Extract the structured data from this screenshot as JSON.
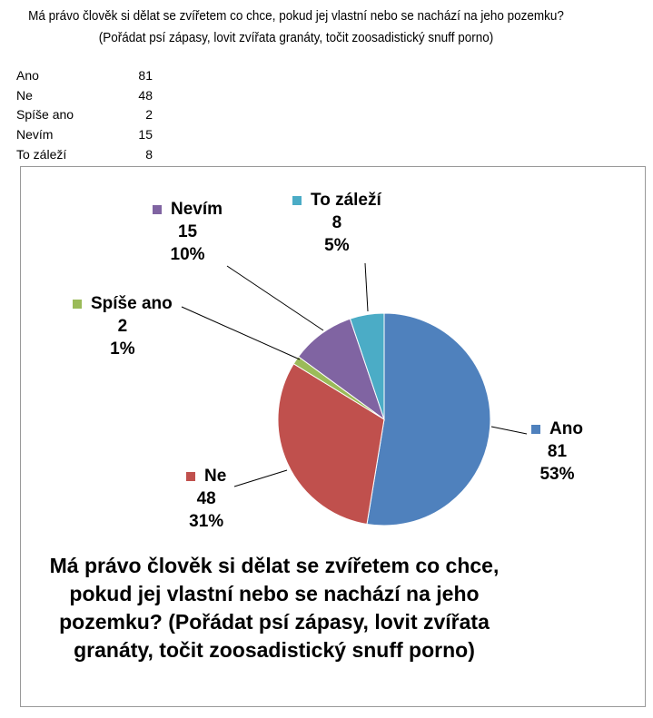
{
  "question": "Má právo člověk si dělat se zvířetem co chce, pokud jej vlastní nebo se nachází na jeho pozemku? (Pořádat psí zápasy, lovit zvířata granáty, točit zoosadistický snuff porno)",
  "table": [
    {
      "name": "Ano",
      "value": "81"
    },
    {
      "name": "Ne",
      "value": "48"
    },
    {
      "name": "Spíše ano",
      "value": "2"
    },
    {
      "name": "Nevím",
      "value": "15"
    },
    {
      "name": "To záleží",
      "value": "8"
    }
  ],
  "chart_data": {
    "type": "pie",
    "title": "Má právo člověk si dělat se zvířetem co chce, pokud jej vlastní nebo se nachází na jeho pozemku? (Pořádat psí zápasy, lovit zvířata granáty, točit zoosadistický snuff porno)",
    "categories": [
      "Ano",
      "Ne",
      "Spíše ano",
      "Nevím",
      "To záleží"
    ],
    "values": [
      81,
      48,
      2,
      15,
      8
    ],
    "percent_labels": [
      "53%",
      "31%",
      "1%",
      "10%",
      "5%"
    ],
    "value_labels": [
      "81",
      "48",
      "2",
      "15",
      "8"
    ],
    "colors": [
      "#4f81bd",
      "#c0504d",
      "#9bbb59",
      "#8064a2",
      "#4bacc6"
    ],
    "start": "top",
    "direction": "clockwise"
  }
}
